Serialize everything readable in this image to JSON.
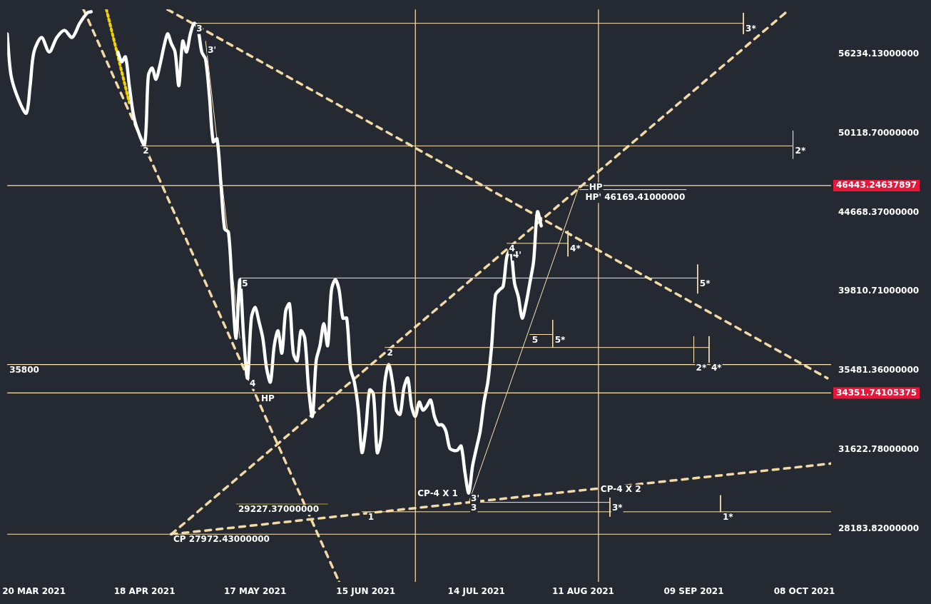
{
  "chart_data": {
    "type": "line",
    "log": "y",
    "grid": false,
    "legend": false,
    "marker": "none",
    "xlim": [
      "2021-03-13",
      "2021-10-15"
    ],
    "ylim": [
      26100,
      60000
    ],
    "xticks": [
      {
        "value": "2021-03-20",
        "label": "20 MAR 2021"
      },
      {
        "value": "2021-04-18",
        "label": "18 APR 2021"
      },
      {
        "value": "2021-05-17",
        "label": "17 MAY 2021"
      },
      {
        "value": "2021-06-15",
        "label": "15 JUN 2021"
      },
      {
        "value": "2021-07-14",
        "label": "14 JUL 2021"
      },
      {
        "value": "2021-08-11",
        "label": "11 AUG 2021"
      },
      {
        "value": "2021-09-09",
        "label": "09 SEP 2021"
      },
      {
        "value": "2021-10-08",
        "label": "08 OCT 2021"
      }
    ],
    "yticks": [
      {
        "value": 28183.82,
        "label": "28183.82000000"
      },
      {
        "value": 31622.78,
        "label": "31622.78000000"
      },
      {
        "value": 35481.36,
        "label": "35481.36000000"
      },
      {
        "value": 39810.71,
        "label": "39810.71000000"
      },
      {
        "value": 44668.37,
        "label": "44668.37000000"
      },
      {
        "value": 50118.7,
        "label": "50118.70000000"
      },
      {
        "value": 56234.13,
        "label": "56234.13000000"
      }
    ],
    "series": [
      {
        "type": "line",
        "color": "#ffffff",
        "x": [
          "2021-03-13",
          "2021-03-14",
          "2021-03-16",
          "2021-03-18",
          "2021-03-19",
          "2021-03-20",
          "2021-03-22",
          "2021-03-24",
          "2021-03-26",
          "2021-03-28",
          "2021-03-30",
          "2021-04-01",
          "2021-04-03",
          "2021-04-04",
          "2021-04-07",
          "2021-04-11",
          "2021-04-12",
          "2021-04-13",
          "2021-04-14",
          "2021-04-15",
          "2021-04-16",
          "2021-04-18",
          "2021-04-19",
          "2021-04-20",
          "2021-04-21",
          "2021-04-22",
          "2021-04-24",
          "2021-04-25",
          "2021-04-26",
          "2021-04-27",
          "2021-04-28",
          "2021-04-29",
          "2021-04-30",
          "2021-05-01",
          "2021-05-02",
          "2021-05-03",
          "2021-05-04",
          "2021-05-05",
          "2021-05-06",
          "2021-05-07",
          "2021-05-08",
          "2021-05-09",
          "2021-05-10",
          "2021-05-11",
          "2021-05-12",
          "2021-05-13",
          "2021-05-14",
          "2021-05-15",
          "2021-05-16",
          "2021-05-17",
          "2021-05-18",
          "2021-05-19",
          "2021-05-20",
          "2021-05-21",
          "2021-05-22",
          "2021-05-23",
          "2021-05-24",
          "2021-05-25",
          "2021-05-26",
          "2021-05-27",
          "2021-05-28",
          "2021-05-29",
          "2021-05-30",
          "2021-05-31",
          "2021-06-01",
          "2021-06-02",
          "2021-06-03",
          "2021-06-04",
          "2021-06-05",
          "2021-06-06",
          "2021-06-07",
          "2021-06-08",
          "2021-06-09",
          "2021-06-10",
          "2021-06-11",
          "2021-06-12",
          "2021-06-13",
          "2021-06-14",
          "2021-06-15",
          "2021-06-16",
          "2021-06-17",
          "2021-06-18",
          "2021-06-19",
          "2021-06-20",
          "2021-06-21",
          "2021-06-22",
          "2021-06-23",
          "2021-06-24",
          "2021-06-25",
          "2021-06-26",
          "2021-06-27",
          "2021-06-28",
          "2021-06-29",
          "2021-06-30",
          "2021-07-01",
          "2021-07-02",
          "2021-07-03",
          "2021-07-04",
          "2021-07-05",
          "2021-07-06",
          "2021-07-07",
          "2021-07-08",
          "2021-07-09",
          "2021-07-10",
          "2021-07-11",
          "2021-07-12",
          "2021-07-13",
          "2021-07-14",
          "2021-07-15",
          "2021-07-16",
          "2021-07-17",
          "2021-07-18",
          "2021-07-19",
          "2021-07-20",
          "2021-07-21",
          "2021-07-22",
          "2021-07-23",
          "2021-07-24",
          "2021-07-25",
          "2021-07-26",
          "2021-07-27",
          "2021-07-28",
          "2021-07-29",
          "2021-07-30",
          "2021-07-31"
        ],
        "values": [
          57900,
          54500,
          52600,
          51600,
          53700,
          56400,
          57600,
          56400,
          57600,
          58200,
          57600,
          58800,
          59700,
          59800,
          null,
          56400,
          55600,
          56000,
          53700,
          51600,
          50500,
          49300,
          54500,
          55100,
          54200,
          55300,
          57900,
          57100,
          56400,
          53700,
          57300,
          56400,
          57900,
          58800,
          58300,
          56400,
          55800,
          52900,
          49500,
          49700,
          46600,
          43600,
          43400,
          39900,
          37200,
          40500,
          37200,
          35100,
          38300,
          38900,
          38100,
          37200,
          35600,
          34900,
          36800,
          37600,
          36400,
          38700,
          39100,
          36400,
          36000,
          37600,
          37200,
          34600,
          33200,
          36000,
          36800,
          38000,
          36800,
          39900,
          40500,
          39900,
          38300,
          38300,
          35600,
          34900,
          33600,
          31500,
          32600,
          34500,
          34300,
          31500,
          32200,
          34900,
          35800,
          34900,
          33500,
          33300,
          34600,
          35100,
          33700,
          33200,
          33900,
          33500,
          33700,
          34000,
          33200,
          32800,
          32800,
          32500,
          31700,
          31600,
          31600,
          31800,
          30600,
          29700,
          30900,
          31700,
          32500,
          33900,
          34900,
          36800,
          39600,
          39900,
          40100,
          41900,
          42300,
          40300,
          39500,
          38300,
          39100,
          40300,
          41600,
          44700,
          43800
        ]
      },
      {
        "type": "line",
        "color": "#ffe4b0",
        "x": [
          "2021-05-01",
          "2021-09-22"
        ],
        "values": [
          58800,
          58800
        ]
      },
      {
        "type": "line",
        "color": "#ffe4b0",
        "x": [
          "2021-04-17",
          "2021-10-05"
        ],
        "values": [
          49200,
          49200
        ]
      },
      {
        "type": "line",
        "color": "#ffe4b0",
        "x": [
          "2021-08-10",
          "2021-09-07"
        ],
        "values": [
          46169.41,
          46169.41
        ]
      },
      {
        "type": "line",
        "color": "#ffe4b0",
        "x": [
          "2021-07-22",
          "2021-08-07"
        ],
        "values": [
          42700,
          42700
        ]
      },
      {
        "type": "line",
        "color": "#ffe4b0",
        "x": [
          "2021-05-13",
          "2021-09-10"
        ],
        "values": [
          40600,
          40600
        ]
      },
      {
        "type": "line",
        "color": "#ffe4b0",
        "x": [
          "2021-07-28",
          "2021-08-03"
        ],
        "values": [
          37400,
          37400
        ]
      },
      {
        "type": "line",
        "color": "#ffe4b0",
        "x": [
          "2021-06-20",
          "2021-09-13"
        ],
        "values": [
          36700,
          36700
        ]
      },
      {
        "type": "line",
        "color": "#ffe4b0",
        "x": [
          "2021-07-12",
          "2021-08-18"
        ],
        "values": [
          29300,
          29300
        ]
      },
      {
        "type": "line",
        "color": "#ffe4b0",
        "x": [
          "2021-06-14",
          "2021-10-15"
        ],
        "values": [
          28900,
          28900
        ]
      },
      {
        "type": "line",
        "color": "#ffe4b0",
        "x": [
          "2021-07-12",
          "2021-08-10"
        ],
        "values": [
          29300,
          46443.25
        ]
      },
      {
        "type": "line",
        "color": "#ffe4b0",
        "x": [
          "2021-05-04",
          "2021-05-13"
        ],
        "values": [
          57300,
          37200
        ]
      },
      {
        "type": "line",
        "color": "#f3d9a4",
        "line_style": "dashed",
        "x": [
          "2021-04-25",
          "2021-10-03"
        ],
        "values": [
          27972.43,
          59700
        ]
      },
      {
        "type": "line",
        "color": "#f3d9a4",
        "line_style": "dashed",
        "x": [
          "2021-04-24",
          "2021-10-14"
        ],
        "values": [
          60000,
          35100
        ]
      },
      {
        "type": "line",
        "color": "#f3d9a4",
        "line_style": "dashed",
        "x": [
          "2021-04-02",
          "2021-06-08"
        ],
        "values": [
          60000,
          26100
        ]
      },
      {
        "type": "line",
        "color": "#f3d9a4",
        "line_style": "dashed",
        "x": [
          "2021-04-25",
          "2021-10-15"
        ],
        "values": [
          27972.43,
          31000
        ]
      },
      {
        "type": "line",
        "color": "#f5d000",
        "line_style": "dotted",
        "x": [
          "2021-04-08",
          "2021-04-14"
        ],
        "values": [
          60000,
          52400
        ]
      },
      {
        "type": "line",
        "color": "#ffe4b0",
        "x": [
          "2021-09-22",
          "2021-09-22"
        ],
        "values": [
          59700,
          57900
        ]
      },
      {
        "type": "line",
        "color": "#ffe4b0",
        "x": [
          "2021-10-05",
          "2021-10-05"
        ],
        "values": [
          50300,
          48300
        ]
      },
      {
        "type": "line",
        "color": "#ffe4b0",
        "x": [
          "2021-09-10",
          "2021-09-10"
        ],
        "values": [
          41400,
          39700
        ]
      },
      {
        "type": "line",
        "color": "#ffe4b0",
        "x": [
          "2021-09-09",
          "2021-09-09"
        ],
        "values": [
          37300,
          35900
        ]
      },
      {
        "type": "line",
        "color": "#ffe4b0",
        "x": [
          "2021-09-13",
          "2021-09-13"
        ],
        "values": [
          37300,
          35900
        ]
      },
      {
        "type": "line",
        "color": "#ffe4b0",
        "x": [
          "2021-08-07",
          "2021-08-07"
        ],
        "values": [
          43500,
          41900
        ]
      },
      {
        "type": "line",
        "color": "#ffe4b0",
        "x": [
          "2021-08-03",
          "2021-08-03"
        ],
        "values": [
          38200,
          36700
        ]
      },
      {
        "type": "line",
        "color": "#ffe4b0",
        "x": [
          "2021-08-18",
          "2021-08-18"
        ],
        "values": [
          29500,
          28700
        ]
      },
      {
        "type": "line",
        "color": "#ffe4b0",
        "x": [
          "2021-09-16",
          "2021-09-16"
        ],
        "values": [
          29600,
          28900
        ]
      },
      {
        "type": "line",
        "color": "#b8a02a",
        "x": [
          "2021-05-12",
          "2021-06-05"
        ],
        "values": [
          29227.37,
          29227.37
        ]
      }
    ],
    "ref_lines": [
      {
        "axis": "y",
        "value": 46443.24637897,
        "label": "46443.24637897",
        "color": "#ffe4b0"
      },
      {
        "axis": "y",
        "value": 34351.74105375,
        "label": "34351.74105375",
        "color": "#ffe4b0"
      },
      {
        "axis": "y",
        "value": 35800,
        "color": "#ffe4b0"
      },
      {
        "axis": "y",
        "value": 27972.43,
        "color": "#ffe4b0"
      },
      {
        "axis": "x",
        "value": "2021-06-28",
        "color": "#ffe4b0"
      },
      {
        "axis": "x",
        "value": "2021-08-15",
        "color": "#ffe4b0"
      }
    ],
    "annotations": [
      {
        "text": "35800",
        "x": "2021-03-13",
        "y": 35800
      },
      {
        "text": "3",
        "x": "2021-05-01",
        "y": 58800
      },
      {
        "text": "3'",
        "x": "2021-05-04",
        "y": 57000
      },
      {
        "text": "2",
        "x": "2021-04-17",
        "y": 49200
      },
      {
        "text": "5",
        "x": "2021-05-13",
        "y": 40600
      },
      {
        "text": "4",
        "x": "2021-05-15",
        "y": 35100
      },
      {
        "text": "HP",
        "x": "2021-05-18",
        "y": 34351.74
      },
      {
        "text": "2",
        "x": "2021-06-20",
        "y": 36700
      },
      {
        "text": "1",
        "x": "2021-06-15",
        "y": 28900
      },
      {
        "text": "3",
        "x": "2021-07-12",
        "y": 29300
      },
      {
        "text": "3'",
        "x": "2021-07-12",
        "y": 29700
      },
      {
        "text": "CP-4 X 1",
        "x": "2021-06-28",
        "y": 29900
      },
      {
        "text": "CP-4 X 2",
        "x": "2021-08-15",
        "y": 30100
      },
      {
        "text": "3*",
        "x": "2021-08-18",
        "y": 29300
      },
      {
        "text": "1*",
        "x": "2021-09-16",
        "y": 28900
      },
      {
        "text": "2*",
        "x": "2021-09-09",
        "y": 35900
      },
      {
        "text": "4*",
        "x": "2021-09-13",
        "y": 35900
      },
      {
        "text": "5*",
        "x": "2021-09-10",
        "y": 40600
      },
      {
        "text": "5",
        "x": "2021-07-28",
        "y": 37400
      },
      {
        "text": "5*",
        "x": "2021-08-03",
        "y": 37400
      },
      {
        "text": "4*",
        "x": "2021-08-07",
        "y": 42700
      },
      {
        "text": "4'",
        "x": "2021-07-23",
        "y": 42300
      },
      {
        "text": "4",
        "x": "2021-07-22",
        "y": 42700
      },
      {
        "text": "HP",
        "x": "2021-08-12",
        "y": 46700
      },
      {
        "text": "HP' 46169.41000000",
        "x": "2021-08-11",
        "y": 46000
      },
      {
        "text": "3*",
        "x": "2021-09-22",
        "y": 58800
      },
      {
        "text": "2*",
        "x": "2021-10-05",
        "y": 49200
      },
      {
        "text": "29227.37000000",
        "x": "2021-05-12",
        "y": 29227.37
      },
      {
        "text": "CP 27972.43000000",
        "x": "2021-04-25",
        "y": 27972.43
      }
    ]
  }
}
